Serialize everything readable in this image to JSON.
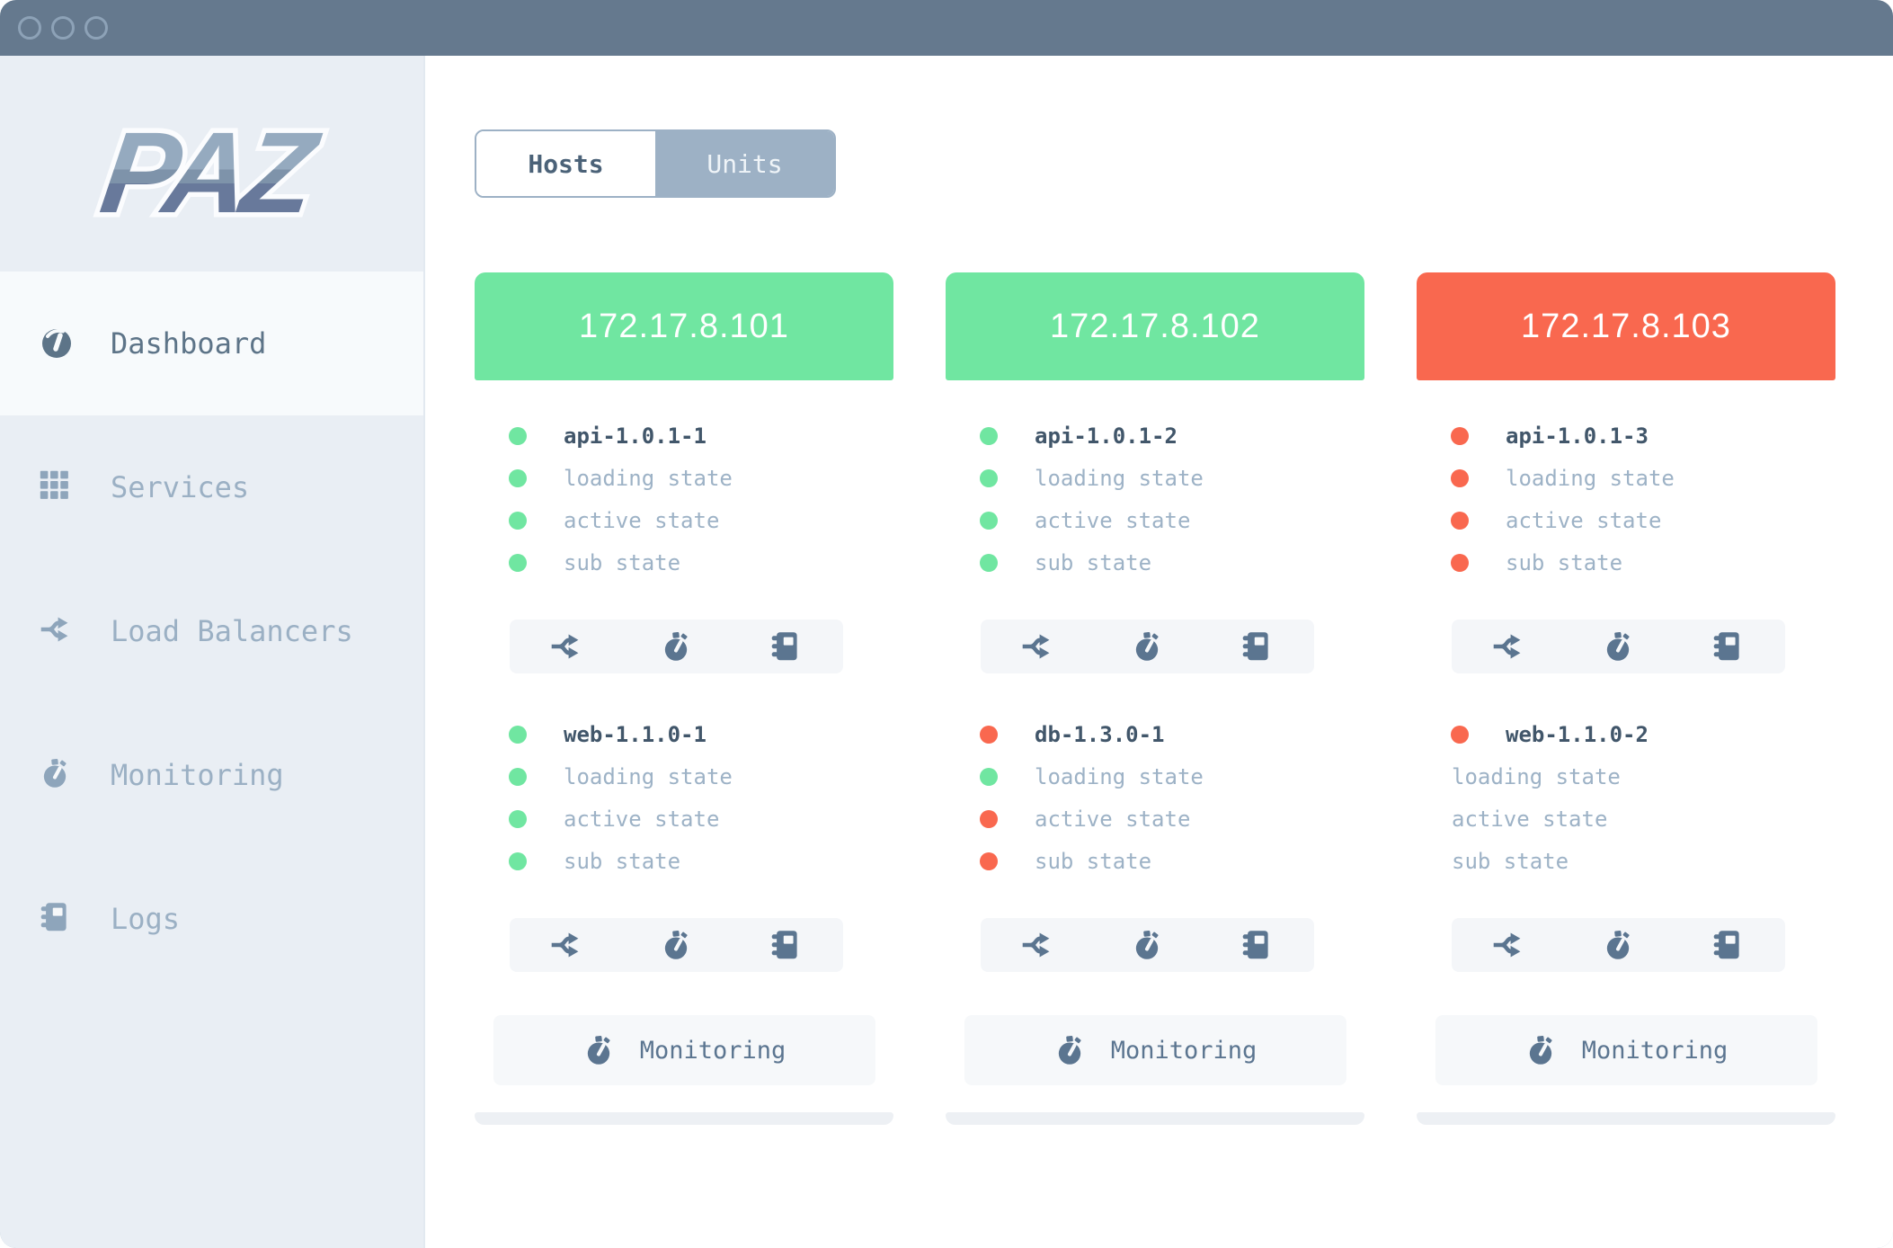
{
  "colors": {
    "green": "#70e6a1",
    "red": "#f9684f"
  },
  "window": {
    "controls": [
      "close",
      "minimize",
      "zoom"
    ]
  },
  "sidebar": {
    "logo": "PAZ",
    "items": [
      {
        "label": "Dashboard",
        "icon": "gauge",
        "active": true
      },
      {
        "label": "Services",
        "icon": "grid",
        "active": false
      },
      {
        "label": "Load Balancers",
        "icon": "fork",
        "active": false
      },
      {
        "label": "Monitoring",
        "icon": "stopwatch",
        "active": false
      },
      {
        "label": "Logs",
        "icon": "journal",
        "active": false
      }
    ]
  },
  "main": {
    "view_toggle": [
      {
        "label": "Hosts",
        "active": true
      },
      {
        "label": "Units",
        "active": false
      }
    ],
    "hosts": [
      {
        "ip": "172.17.8.101",
        "header_color": "#70e6a1",
        "monitoring_label": "Monitoring",
        "units": [
          {
            "name": "api-1.0.1-1",
            "name_dot": "green",
            "states": [
              {
                "label": "loading state",
                "dot": "green"
              },
              {
                "label": "active state",
                "dot": "green"
              },
              {
                "label": "sub state",
                "dot": "green"
              }
            ]
          },
          {
            "name": "web-1.1.0-1",
            "name_dot": "green",
            "states": [
              {
                "label": "loading state",
                "dot": "green"
              },
              {
                "label": "active state",
                "dot": "green"
              },
              {
                "label": "sub state",
                "dot": "green"
              }
            ]
          }
        ]
      },
      {
        "ip": "172.17.8.102",
        "header_color": "#70e6a1",
        "monitoring_label": "Monitoring",
        "units": [
          {
            "name": "api-1.0.1-2",
            "name_dot": "green",
            "states": [
              {
                "label": "loading state",
                "dot": "green"
              },
              {
                "label": "active state",
                "dot": "green"
              },
              {
                "label": "sub state",
                "dot": "green"
              }
            ]
          },
          {
            "name": "db-1.3.0-1",
            "name_dot": "red",
            "states": [
              {
                "label": "loading state",
                "dot": "green"
              },
              {
                "label": "active state",
                "dot": "red"
              },
              {
                "label": "sub state",
                "dot": "red"
              }
            ]
          }
        ]
      },
      {
        "ip": "172.17.8.103",
        "header_color": "#f9684f",
        "monitoring_label": "Monitoring",
        "units": [
          {
            "name": "api-1.0.1-3",
            "name_dot": "red",
            "states": [
              {
                "label": "loading state",
                "dot": "red"
              },
              {
                "label": "active state",
                "dot": "red"
              },
              {
                "label": "sub state",
                "dot": "red"
              }
            ]
          },
          {
            "name": "web-1.1.0-2",
            "name_dot": "red",
            "states": [
              {
                "label": "loading state",
                "dot": null
              },
              {
                "label": "active state",
                "dot": null
              },
              {
                "label": "sub state",
                "dot": null
              }
            ]
          }
        ]
      }
    ]
  }
}
